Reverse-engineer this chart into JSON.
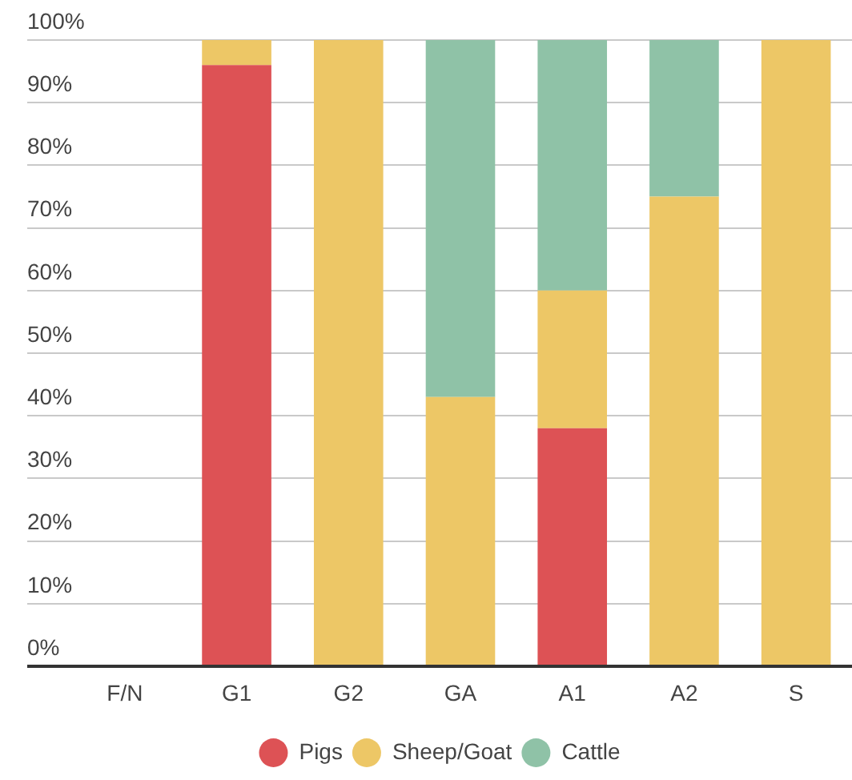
{
  "chart_data": {
    "type": "bar",
    "stacked": true,
    "categories": [
      "F/N",
      "G1",
      "G2",
      "GA",
      "A1",
      "A2",
      "S"
    ],
    "series": [
      {
        "name": "Pigs",
        "color": "#dd5255",
        "values": [
          null,
          96,
          null,
          null,
          38,
          null,
          null
        ]
      },
      {
        "name": "Sheep/Goat",
        "color": "#edc766",
        "values": [
          null,
          4,
          100,
          43,
          22,
          75,
          100
        ]
      },
      {
        "name": "Cattle",
        "color": "#8fc2a7",
        "values": [
          null,
          null,
          null,
          57,
          40,
          25,
          null
        ]
      }
    ],
    "ylim": [
      0,
      100
    ],
    "yticks": [
      {
        "value": 0,
        "label": "0%"
      },
      {
        "value": 10,
        "label": "10%"
      },
      {
        "value": 20,
        "label": "20%"
      },
      {
        "value": 30,
        "label": "30%"
      },
      {
        "value": 40,
        "label": "40%"
      },
      {
        "value": 50,
        "label": "50%"
      },
      {
        "value": 60,
        "label": "60%"
      },
      {
        "value": 70,
        "label": "70%"
      },
      {
        "value": 80,
        "label": "80%"
      },
      {
        "value": 90,
        "label": "90%"
      },
      {
        "value": 100,
        "label": "100%"
      }
    ],
    "grid": "y",
    "legend": "bottom"
  }
}
